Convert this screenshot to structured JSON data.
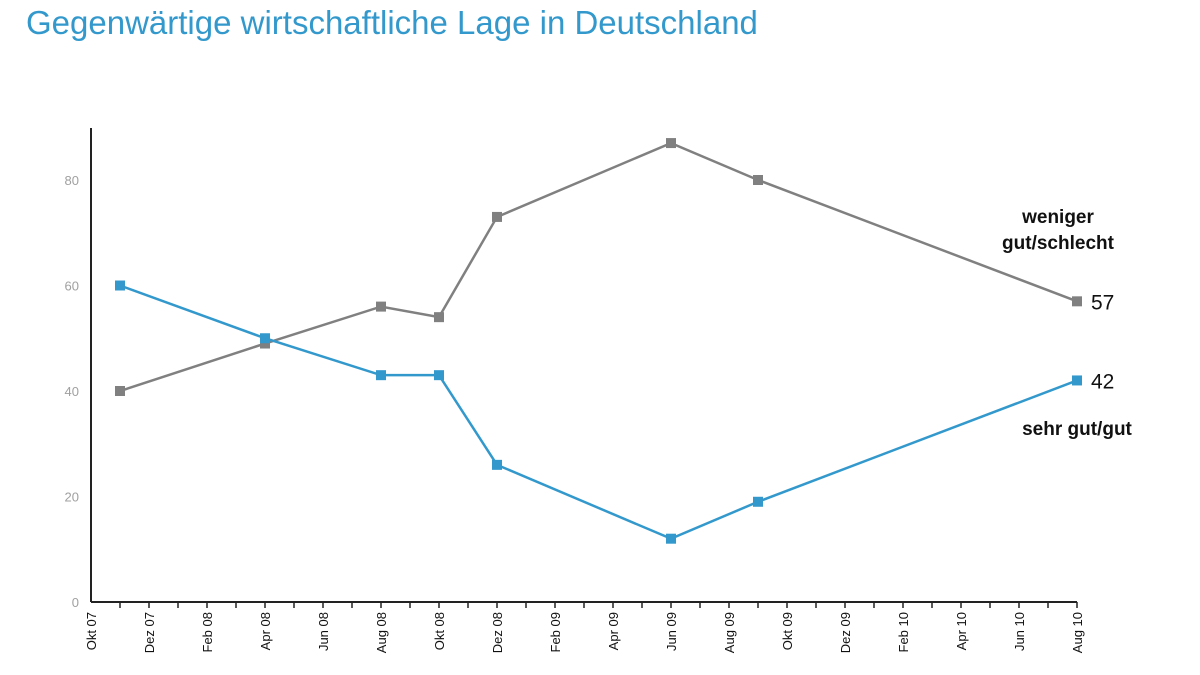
{
  "chart_data": {
    "type": "line",
    "title": "Gegenwärtige wirtschaftliche Lage in Deutschland",
    "xlabel": "",
    "ylabel": "",
    "ylim": [
      0,
      90
    ],
    "yticks": [
      0,
      20,
      40,
      60,
      80
    ],
    "xrange": [
      "2007-10",
      "2010-08"
    ],
    "xtick_labels": [
      {
        "date": "2007-10",
        "label": "Okt 07"
      },
      {
        "date": "2007-12",
        "label": "Dez 07"
      },
      {
        "date": "2008-02",
        "label": "Feb 08"
      },
      {
        "date": "2008-04",
        "label": "Apr 08"
      },
      {
        "date": "2008-06",
        "label": "Jun 08"
      },
      {
        "date": "2008-08",
        "label": "Aug 08"
      },
      {
        "date": "2008-10",
        "label": "Okt 08"
      },
      {
        "date": "2008-12",
        "label": "Dez 08"
      },
      {
        "date": "2009-02",
        "label": "Feb 09"
      },
      {
        "date": "2009-04",
        "label": "Apr 09"
      },
      {
        "date": "2009-06",
        "label": "Jun 09"
      },
      {
        "date": "2009-08",
        "label": "Aug 09"
      },
      {
        "date": "2009-10",
        "label": "Okt 09"
      },
      {
        "date": "2009-12",
        "label": "Dez 09"
      },
      {
        "date": "2010-02",
        "label": "Feb 10"
      },
      {
        "date": "2010-04",
        "label": "Apr 10"
      },
      {
        "date": "2010-06",
        "label": "Jun 10"
      },
      {
        "date": "2010-08",
        "label": "Aug 10"
      }
    ],
    "grid": false,
    "series": [
      {
        "name": "weniger gut/schlecht",
        "label_lines": [
          "weniger",
          "gut/schlecht"
        ],
        "color": "#808080",
        "x": [
          "2007-11",
          "2008-04",
          "2008-08",
          "2008-10",
          "2008-12",
          "2009-06",
          "2009-09",
          "2010-08"
        ],
        "values": [
          40,
          49,
          56,
          54,
          73,
          87,
          80,
          57
        ],
        "end_label": "57"
      },
      {
        "name": "sehr gut/gut",
        "label_lines": [
          "sehr gut/gut"
        ],
        "color": "#3399cc",
        "x": [
          "2007-11",
          "2008-04",
          "2008-08",
          "2008-10",
          "2008-12",
          "2009-06",
          "2009-09",
          "2010-08"
        ],
        "values": [
          60,
          50,
          43,
          43,
          26,
          12,
          19,
          42
        ],
        "end_label": "42"
      }
    ]
  }
}
